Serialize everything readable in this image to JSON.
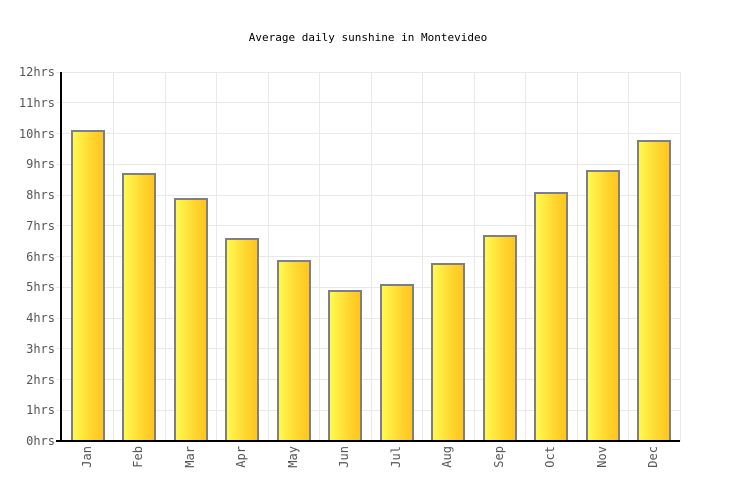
{
  "title": "Average daily sunshine in Montevideo",
  "chart_data": {
    "type": "bar",
    "title": "Average daily sunshine in Montevideo",
    "categories": [
      "Jan",
      "Feb",
      "Mar",
      "Apr",
      "May",
      "Jun",
      "Jul",
      "Aug",
      "Sep",
      "Oct",
      "Nov",
      "Dec"
    ],
    "values": [
      10.1,
      8.7,
      7.9,
      6.6,
      5.9,
      4.9,
      5.1,
      5.8,
      6.7,
      8.1,
      8.8,
      9.8
    ],
    "series_name": "Average daily sunshine (hours)",
    "xlabel": "",
    "ylabel": "hrs",
    "ylim": [
      0,
      12
    ],
    "ytick_step": 1,
    "ytick_suffix": "hrs",
    "grid": true,
    "legend": false
  },
  "colors": {
    "background": "#FFFFFF",
    "bar_gradient_start": "#FFFA50",
    "bar_gradient_mid": "#FFD42E",
    "bar_gradient_end": "#FFC61F",
    "bar_border": "#7F7F7F",
    "gridline": "#E9E9E9",
    "axis": "#000000",
    "axis_label": "#555555",
    "title": "#000000"
  }
}
